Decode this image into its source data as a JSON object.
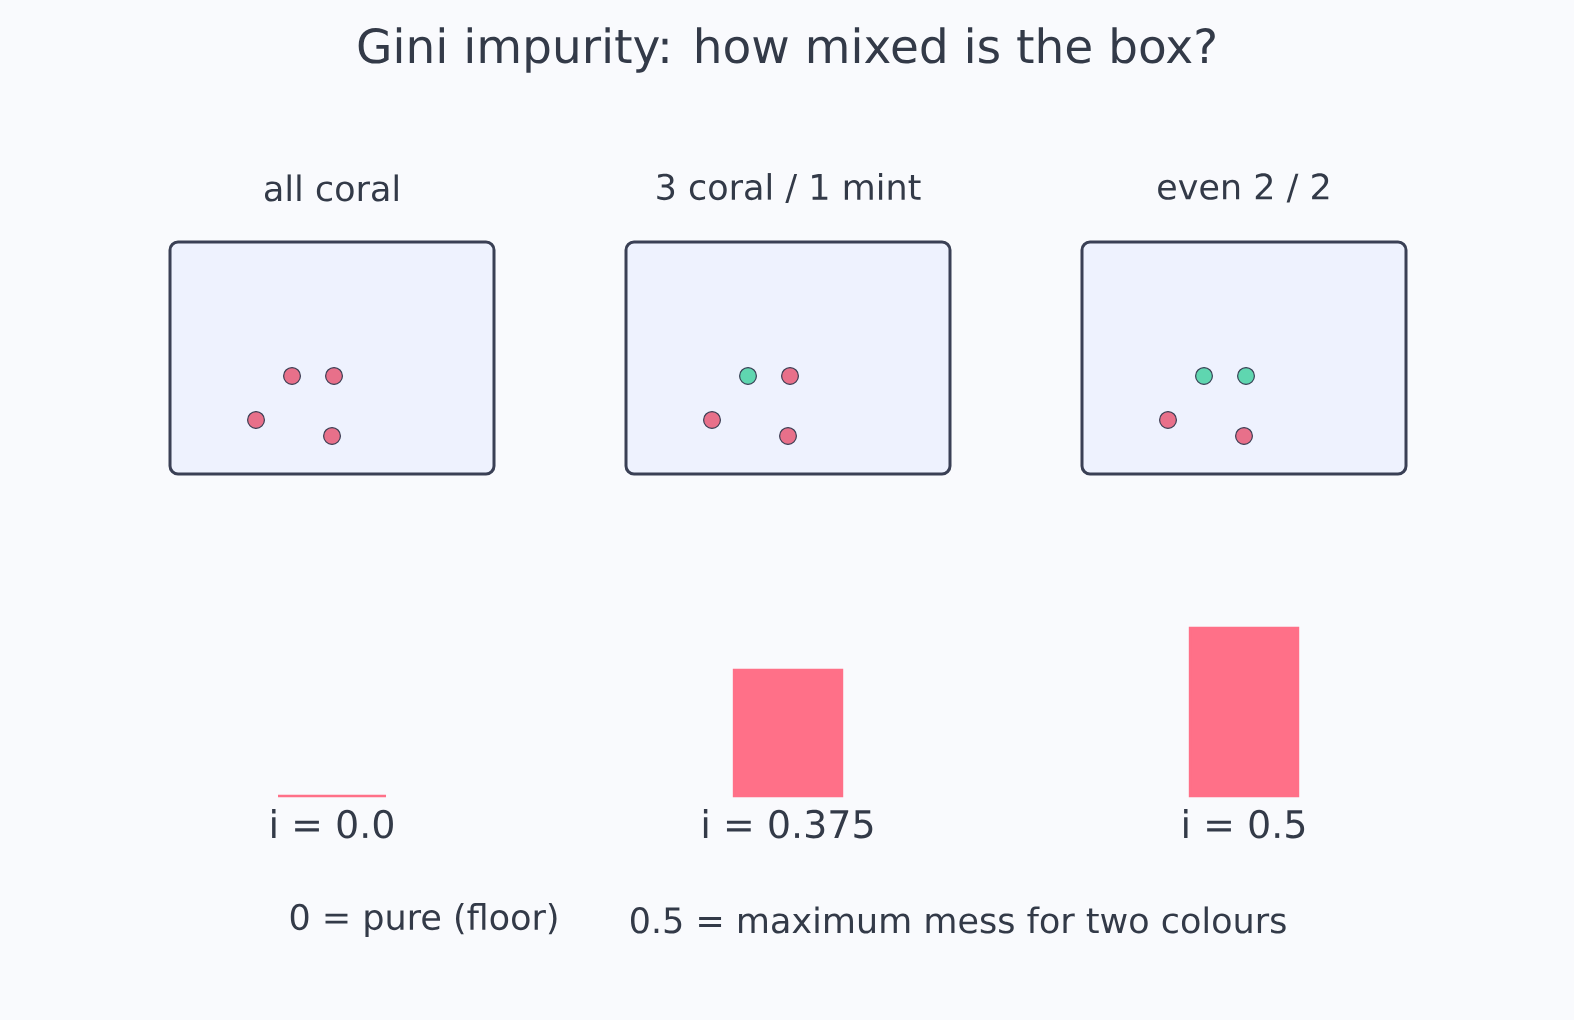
{
  "chart_data": {
    "type": "bar",
    "title": "Gini impurity: how mixed is the box?",
    "categories": [
      "all coral",
      "3 coral / 1 mint",
      "even 2 / 2"
    ],
    "values": [
      0,
      0.375,
      0.5
    ],
    "value_labels": [
      "i = 0.0",
      "i = 0.375",
      "i = 0.5"
    ],
    "color": "#ff7088",
    "annotations": [
      "0 = pure (floor)",
      "0.5 = maximum mess for two colours"
    ]
  }
}
